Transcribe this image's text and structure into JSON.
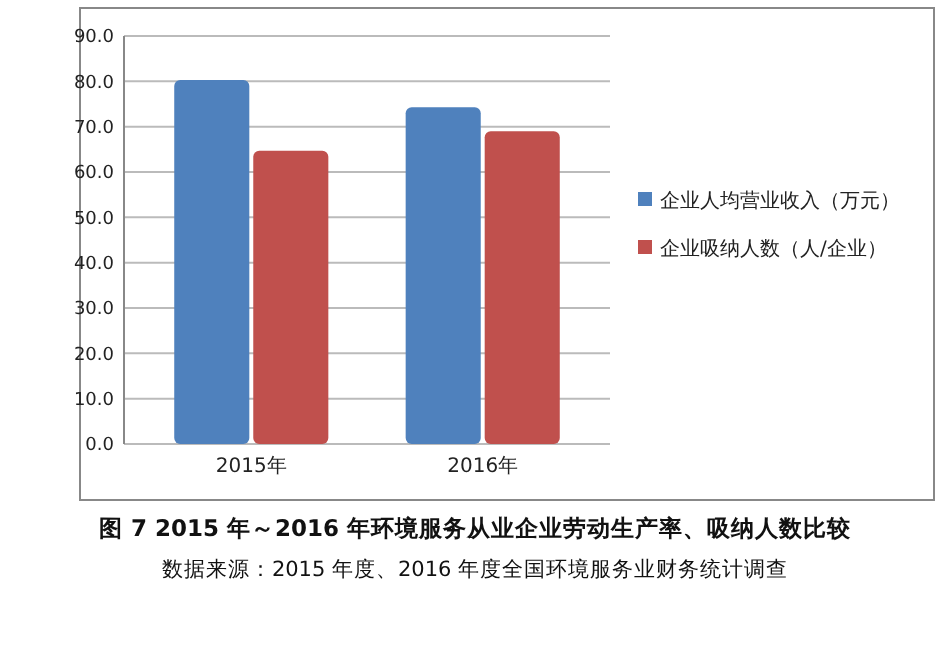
{
  "chart_data": {
    "type": "bar",
    "title": "图 7 2015 年～2016 年环境服务从业企业劳动生产率、吸纳人数比较",
    "subtitle": "数据来源：2015 年度、2016 年度全国环境服务业财务统计调查",
    "categories": [
      "2015年",
      "2016年"
    ],
    "series": [
      {
        "name": "企业人均营业收入（万元）",
        "color": "#4f81bd",
        "values": [
          80.3,
          74.3
        ]
      },
      {
        "name": "企业吸纳人数（人/企业）",
        "color": "#c0504d",
        "values": [
          64.7,
          69.0
        ]
      }
    ],
    "ylim": [
      0,
      90
    ],
    "yticks": [
      {
        "value": 0,
        "label": "0.0"
      },
      {
        "value": 10,
        "label": "10.0"
      },
      {
        "value": 20,
        "label": "20.0"
      },
      {
        "value": 30,
        "label": "30.0"
      },
      {
        "value": 40,
        "label": "40.0"
      },
      {
        "value": 50,
        "label": "50.0"
      },
      {
        "value": 60,
        "label": "60.0"
      },
      {
        "value": 70,
        "label": "70.0"
      },
      {
        "value": 80,
        "label": "80.0"
      },
      {
        "value": 90,
        "label": "90.0"
      }
    ],
    "grid": "y",
    "legend": "right"
  }
}
